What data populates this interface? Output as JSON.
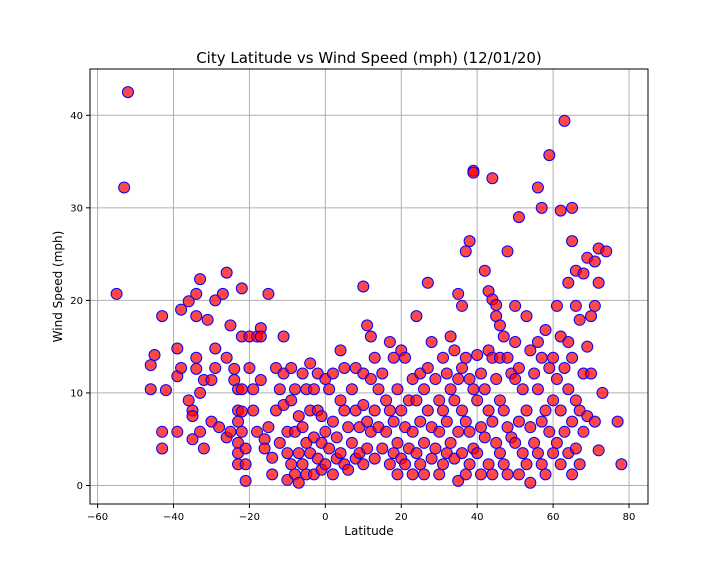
{
  "chart_data": {
    "type": "scatter",
    "title": "City Latitude vs Wind Speed (mph) (12/01/20)",
    "xlabel": "Latitude",
    "ylabel": "Wind Speed (mph)",
    "xlim": [
      -62,
      85
    ],
    "ylim": [
      -2,
      45
    ],
    "xticks": [
      -60,
      -40,
      -20,
      0,
      20,
      40,
      60,
      80
    ],
    "yticks": [
      0,
      10,
      20,
      30,
      40
    ],
    "grid": true,
    "marker_face_color": "#ff0000",
    "marker_edge_color": "#0000ff",
    "points": [
      [
        -55,
        20.7
      ],
      [
        -52,
        42.5
      ],
      [
        -53,
        32.2
      ],
      [
        -46,
        13
      ],
      [
        -46,
        10.4
      ],
      [
        -45,
        14.1
      ],
      [
        -43,
        18.3
      ],
      [
        -43,
        5.8
      ],
      [
        -43,
        4
      ],
      [
        -42,
        10.3
      ],
      [
        -39,
        14.8
      ],
      [
        -39,
        11.8
      ],
      [
        -39,
        5.8
      ],
      [
        -38,
        19
      ],
      [
        -38,
        12.7
      ],
      [
        -36,
        19.9
      ],
      [
        -36,
        9.2
      ],
      [
        -35,
        8.1
      ],
      [
        -35,
        7.5
      ],
      [
        -35,
        5
      ],
      [
        -34,
        20.7
      ],
      [
        -34,
        18.3
      ],
      [
        -34,
        13.8
      ],
      [
        -34,
        12.6
      ],
      [
        -33,
        22.3
      ],
      [
        -33,
        10
      ],
      [
        -33,
        5.8
      ],
      [
        -32,
        11.4
      ],
      [
        -32,
        4
      ],
      [
        -31,
        17.9
      ],
      [
        -30,
        11.4
      ],
      [
        -30,
        6.9
      ],
      [
        -29,
        20
      ],
      [
        -29,
        14.8
      ],
      [
        -29,
        12.7
      ],
      [
        -28,
        6.3
      ],
      [
        -27,
        20.7
      ],
      [
        -26,
        23
      ],
      [
        -26,
        13.8
      ],
      [
        -26,
        5.2
      ],
      [
        -25,
        17.3
      ],
      [
        -25,
        5.8
      ],
      [
        -24,
        12.6
      ],
      [
        -24,
        11.4
      ],
      [
        -23,
        10.4
      ],
      [
        -23,
        8.1
      ],
      [
        -23,
        6.9
      ],
      [
        -23,
        4.6
      ],
      [
        -23,
        3.5
      ],
      [
        -23,
        2.3
      ],
      [
        -22,
        21.3
      ],
      [
        -22,
        16.1
      ],
      [
        -22,
        10.4
      ],
      [
        -22,
        8
      ],
      [
        -22,
        5.8
      ],
      [
        -21,
        4
      ],
      [
        -21,
        2.3
      ],
      [
        -21,
        0.5
      ],
      [
        -20,
        16.1
      ],
      [
        -20,
        12.7
      ],
      [
        -19,
        10.4
      ],
      [
        -19,
        8.1
      ],
      [
        -18,
        16.1
      ],
      [
        -18,
        5.8
      ],
      [
        -17,
        17
      ],
      [
        -17,
        16.1
      ],
      [
        -17,
        11.4
      ],
      [
        -16,
        5
      ],
      [
        -16,
        4
      ],
      [
        -15,
        20.7
      ],
      [
        -15,
        6.3
      ],
      [
        -14,
        3
      ],
      [
        -14,
        1.2
      ],
      [
        -13,
        12.7
      ],
      [
        -13,
        8.1
      ],
      [
        -12,
        10.4
      ],
      [
        -12,
        4.6
      ],
      [
        -11,
        16.1
      ],
      [
        -11,
        12.1
      ],
      [
        -11,
        8.7
      ],
      [
        -10,
        5.8
      ],
      [
        -10,
        3.5
      ],
      [
        -10,
        0.6
      ],
      [
        -9,
        12.7
      ],
      [
        -9,
        9.2
      ],
      [
        -9,
        2.3
      ],
      [
        -8,
        10.4
      ],
      [
        -8,
        5.8
      ],
      [
        -8,
        1.2
      ],
      [
        -7,
        7.5
      ],
      [
        -7,
        3.5
      ],
      [
        -7,
        0.3
      ],
      [
        -6,
        12.1
      ],
      [
        -6,
        6.3
      ],
      [
        -6,
        2.3
      ],
      [
        -5,
        10.4
      ],
      [
        -5,
        4.6
      ],
      [
        -5,
        1.2
      ],
      [
        -4,
        13.2
      ],
      [
        -4,
        8.1
      ],
      [
        -4,
        3.5
      ],
      [
        -3,
        10.4
      ],
      [
        -3,
        5.2
      ],
      [
        -3,
        1.2
      ],
      [
        -2,
        12.1
      ],
      [
        -2,
        8.1
      ],
      [
        -2,
        2.9
      ],
      [
        -1,
        7.5
      ],
      [
        -1,
        4.6
      ],
      [
        -1,
        1.7
      ],
      [
        0,
        11.5
      ],
      [
        0,
        5.8
      ],
      [
        0,
        2.3
      ],
      [
        1,
        10.4
      ],
      [
        1,
        4
      ],
      [
        2,
        12.1
      ],
      [
        2,
        6.9
      ],
      [
        2,
        1.2
      ],
      [
        3,
        5.2
      ],
      [
        3,
        2.9
      ],
      [
        4,
        14.6
      ],
      [
        4,
        9.2
      ],
      [
        4,
        3.5
      ],
      [
        5,
        12.7
      ],
      [
        5,
        8.1
      ],
      [
        5,
        2.3
      ],
      [
        6,
        6.3
      ],
      [
        6,
        1.7
      ],
      [
        7,
        10.4
      ],
      [
        7,
        4.6
      ],
      [
        8,
        12.7
      ],
      [
        8,
        8.1
      ],
      [
        8,
        2.9
      ],
      [
        9,
        6.3
      ],
      [
        9,
        3.5
      ],
      [
        10,
        21.5
      ],
      [
        10,
        12.1
      ],
      [
        10,
        8.7
      ],
      [
        10,
        2.3
      ],
      [
        11,
        17.3
      ],
      [
        11,
        6.9
      ],
      [
        11,
        4
      ],
      [
        12,
        16.1
      ],
      [
        12,
        11.5
      ],
      [
        12,
        5.8
      ],
      [
        13,
        13.8
      ],
      [
        13,
        8.1
      ],
      [
        13,
        2.9
      ],
      [
        14,
        10.4
      ],
      [
        14,
        6.3
      ],
      [
        15,
        12.1
      ],
      [
        15,
        4
      ],
      [
        16,
        9.2
      ],
      [
        16,
        5.8
      ],
      [
        17,
        15.5
      ],
      [
        17,
        8.1
      ],
      [
        17,
        2.3
      ],
      [
        18,
        13.8
      ],
      [
        18,
        6.9
      ],
      [
        18,
        3.5
      ],
      [
        19,
        10.4
      ],
      [
        19,
        4.6
      ],
      [
        19,
        1.2
      ],
      [
        20,
        14.6
      ],
      [
        20,
        8.1
      ],
      [
        20,
        2.9
      ],
      [
        21,
        13.8
      ],
      [
        21,
        6.3
      ],
      [
        21,
        2.3
      ],
      [
        22,
        9.2
      ],
      [
        22,
        4
      ],
      [
        23,
        11.5
      ],
      [
        23,
        5.8
      ],
      [
        23,
        1.2
      ],
      [
        24,
        18.3
      ],
      [
        24,
        9.2
      ],
      [
        24,
        3.5
      ],
      [
        25,
        12.1
      ],
      [
        25,
        6.9
      ],
      [
        25,
        2.3
      ],
      [
        26,
        10.4
      ],
      [
        26,
        4.6
      ],
      [
        26,
        1.2
      ],
      [
        27,
        21.9
      ],
      [
        27,
        12.7
      ],
      [
        27,
        8.1
      ],
      [
        28,
        15.5
      ],
      [
        28,
        6.3
      ],
      [
        28,
        2.9
      ],
      [
        29,
        11.5
      ],
      [
        29,
        4
      ],
      [
        30,
        9.2
      ],
      [
        30,
        5.8
      ],
      [
        30,
        1.2
      ],
      [
        31,
        13.8
      ],
      [
        31,
        8.1
      ],
      [
        31,
        2.3
      ],
      [
        32,
        12.1
      ],
      [
        32,
        6.9
      ],
      [
        32,
        3.5
      ],
      [
        33,
        16.1
      ],
      [
        33,
        10.4
      ],
      [
        33,
        4.6
      ],
      [
        34,
        14.6
      ],
      [
        34,
        9.2
      ],
      [
        34,
        2.9
      ],
      [
        35,
        20.7
      ],
      [
        35,
        11.5
      ],
      [
        35,
        5.8
      ],
      [
        35,
        0.5
      ],
      [
        36,
        19.4
      ],
      [
        36,
        12.7
      ],
      [
        36,
        8.1
      ],
      [
        36,
        3.5
      ],
      [
        37,
        25.3
      ],
      [
        37,
        13.8
      ],
      [
        37,
        6.9
      ],
      [
        37,
        1.2
      ],
      [
        38,
        26.4
      ],
      [
        38,
        11.5
      ],
      [
        38,
        5.8
      ],
      [
        38,
        2.3
      ],
      [
        39,
        34
      ],
      [
        39,
        33.8
      ],
      [
        39,
        10.4
      ],
      [
        39,
        4
      ],
      [
        40,
        14.1
      ],
      [
        40,
        9.2
      ],
      [
        40,
        3.5
      ],
      [
        41,
        12.1
      ],
      [
        41,
        6.3
      ],
      [
        41,
        1.2
      ],
      [
        42,
        23.2
      ],
      [
        42,
        10.4
      ],
      [
        42,
        5.2
      ],
      [
        43,
        21
      ],
      [
        43,
        14.6
      ],
      [
        43,
        8.1
      ],
      [
        43,
        2.3
      ],
      [
        44,
        33.2
      ],
      [
        44,
        20.1
      ],
      [
        44,
        13.8
      ],
      [
        44,
        6.9
      ],
      [
        44,
        1.2
      ],
      [
        45,
        19.5
      ],
      [
        45,
        18.3
      ],
      [
        45,
        11.5
      ],
      [
        45,
        4.6
      ],
      [
        46,
        17.3
      ],
      [
        46,
        13.8
      ],
      [
        46,
        9.2
      ],
      [
        46,
        3.5
      ],
      [
        47,
        16.1
      ],
      [
        47,
        8.1
      ],
      [
        47,
        2.3
      ],
      [
        48,
        25.3
      ],
      [
        48,
        13.8
      ],
      [
        48,
        6.3
      ],
      [
        48,
        1.2
      ],
      [
        49,
        12.1
      ],
      [
        49,
        5.2
      ],
      [
        50,
        19.4
      ],
      [
        50,
        15.5
      ],
      [
        50,
        11.5
      ],
      [
        50,
        4.6
      ],
      [
        51,
        29
      ],
      [
        51,
        12.7
      ],
      [
        51,
        6.9
      ],
      [
        51,
        1.2
      ],
      [
        52,
        10.4
      ],
      [
        52,
        3.5
      ],
      [
        53,
        18.3
      ],
      [
        53,
        8.1
      ],
      [
        53,
        2.3
      ],
      [
        54,
        14.6
      ],
      [
        54,
        6.3
      ],
      [
        54,
        0.3
      ],
      [
        55,
        12.1
      ],
      [
        55,
        4.6
      ],
      [
        56,
        32.2
      ],
      [
        56,
        15.5
      ],
      [
        56,
        10.4
      ],
      [
        56,
        3.5
      ],
      [
        57,
        30
      ],
      [
        57,
        13.8
      ],
      [
        57,
        6.9
      ],
      [
        57,
        2.3
      ],
      [
        58,
        16.8
      ],
      [
        58,
        8.1
      ],
      [
        58,
        1.2
      ],
      [
        59,
        35.7
      ],
      [
        59,
        12.7
      ],
      [
        59,
        5.8
      ],
      [
        60,
        13.8
      ],
      [
        60,
        9.2
      ],
      [
        60,
        3.5
      ],
      [
        61,
        19.4
      ],
      [
        61,
        11.5
      ],
      [
        61,
        4.6
      ],
      [
        62,
        29.7
      ],
      [
        62,
        16.1
      ],
      [
        62,
        8.1
      ],
      [
        62,
        2.3
      ],
      [
        63,
        39.4
      ],
      [
        63,
        12.7
      ],
      [
        63,
        5.8
      ],
      [
        64,
        21.9
      ],
      [
        64,
        15.5
      ],
      [
        64,
        10.4
      ],
      [
        64,
        3.5
      ],
      [
        65,
        30
      ],
      [
        65,
        26.4
      ],
      [
        65,
        13.8
      ],
      [
        65,
        6.9
      ],
      [
        65,
        1.2
      ],
      [
        66,
        23.2
      ],
      [
        66,
        19.4
      ],
      [
        66,
        9.2
      ],
      [
        66,
        4
      ],
      [
        67,
        17.9
      ],
      [
        67,
        8.1
      ],
      [
        67,
        2.3
      ],
      [
        68,
        22.9
      ],
      [
        68,
        12.1
      ],
      [
        68,
        5.8
      ],
      [
        69,
        24.6
      ],
      [
        69,
        15
      ],
      [
        69,
        7.5
      ],
      [
        70,
        18.3
      ],
      [
        70,
        12.1
      ],
      [
        71,
        24.2
      ],
      [
        71,
        19.4
      ],
      [
        71,
        6.9
      ],
      [
        72,
        25.6
      ],
      [
        72,
        21.9
      ],
      [
        72,
        3.8
      ],
      [
        73,
        10
      ],
      [
        74,
        25.3
      ],
      [
        77,
        6.9
      ],
      [
        78,
        2.3
      ]
    ]
  }
}
